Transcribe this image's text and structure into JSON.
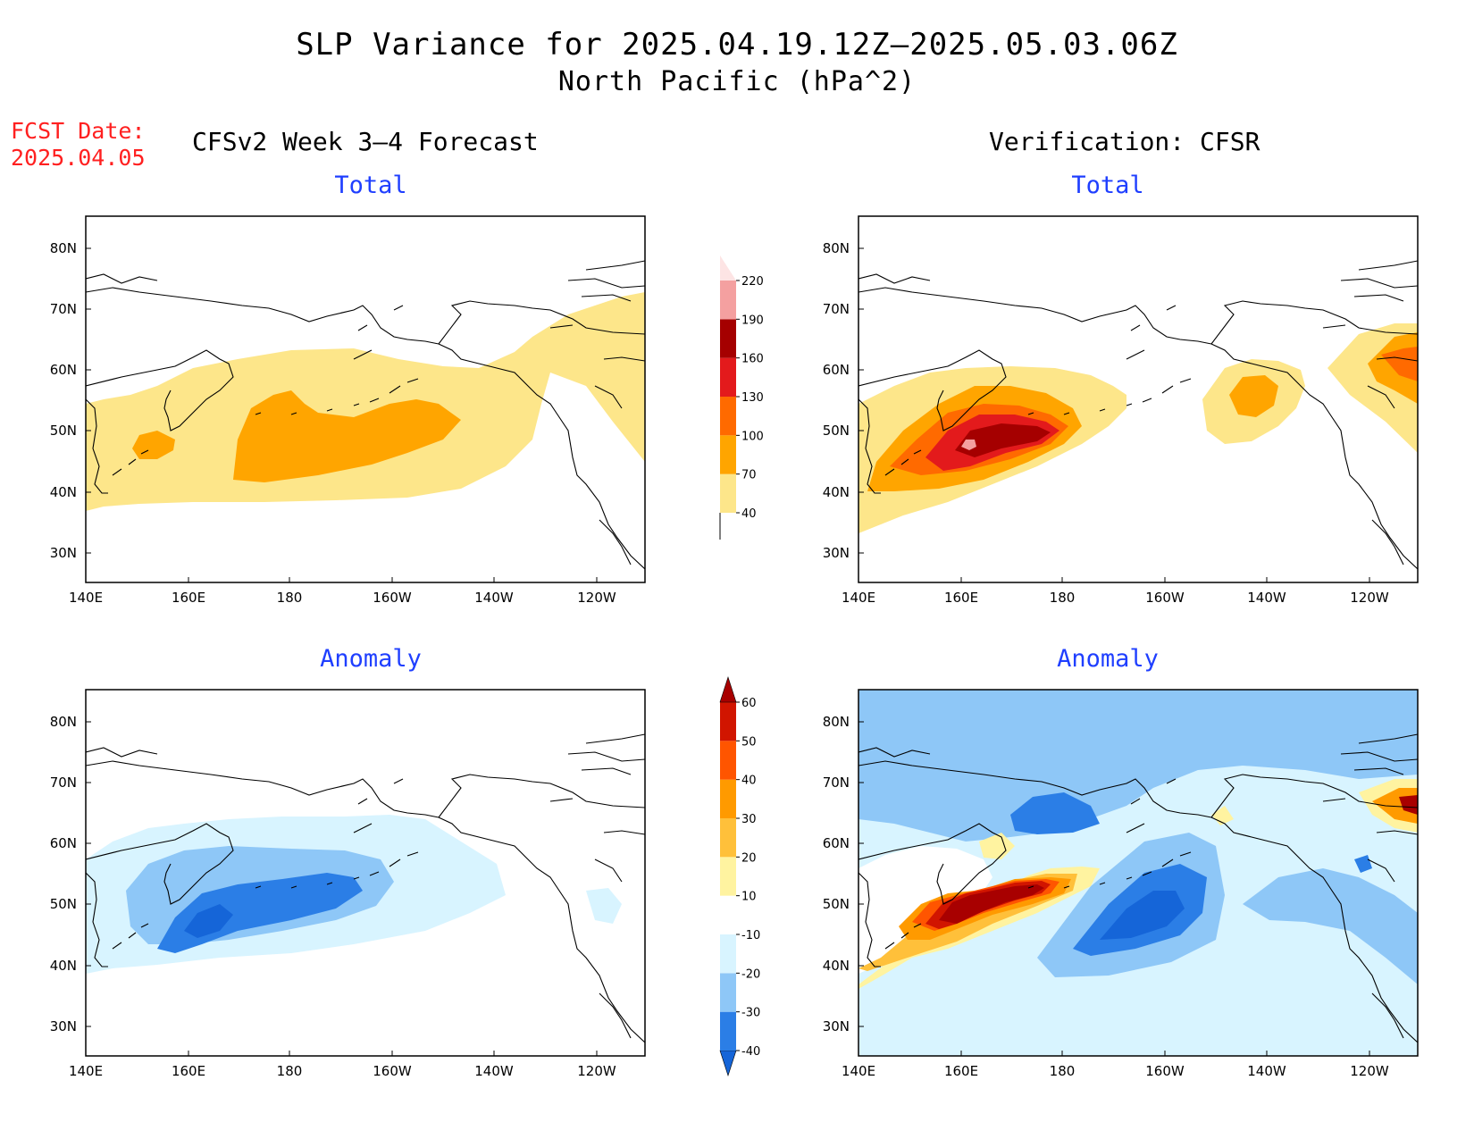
{
  "header": {
    "title_line1": "SLP Variance for 2025.04.19.12Z—2025.05.03.06Z",
    "title_line2": "North Pacific (hPa^2)",
    "fcst_label": "FCST Date:",
    "fcst_date": "2025.04.05"
  },
  "columns": {
    "left": "CFSv2 Week 3—4 Forecast",
    "right": "Verification: CFSR"
  },
  "panels": {
    "fc_total_title": "Total",
    "ver_total_title": "Total",
    "fc_anom_title": "Anomaly",
    "ver_anom_title": "Anomaly"
  },
  "axes": {
    "lon_labels": [
      "140E",
      "160E",
      "180",
      "160W",
      "140W",
      "120W"
    ],
    "lat_labels": [
      "80N",
      "70N",
      "60N",
      "50N",
      "40N",
      "30N"
    ]
  },
  "colorbars": {
    "total": {
      "levels": [
        "40",
        "70",
        "100",
        "130",
        "160",
        "190",
        "220"
      ],
      "colors": [
        "#fde68a",
        "#ffa500",
        "#ff6a00",
        "#e31a1c",
        "#a50000",
        "#f4a0a0",
        "#fde4e4"
      ]
    },
    "anomaly": {
      "levels": [
        "-40",
        "-30",
        "-20",
        "-10",
        "10",
        "20",
        "30",
        "40",
        "50",
        "60"
      ],
      "colors": [
        "#1565d8",
        "#2b7ee6",
        "#8ec7f7",
        "#d8f4ff",
        "#ffffff",
        "#fff3a0",
        "#ffc03a",
        "#ff9a00",
        "#ff5500",
        "#d11500",
        "#a80000"
      ]
    }
  }
}
